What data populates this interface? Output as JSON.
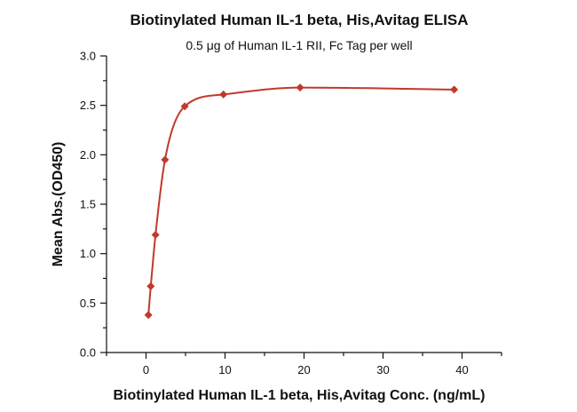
{
  "chart_data": {
    "type": "scatter",
    "title": "Biotinylated Human IL-1 beta, His,Avitag ELISA",
    "subtitle": "0.5 μg of Human IL-1 RII, Fc Tag per well",
    "xlabel": "Biotinylated Human IL-1 beta, His,Avitag Conc. (ng/mL)",
    "ylabel": "Mean Abs.(OD450)",
    "xlim": [
      -5,
      45
    ],
    "ylim": [
      0,
      3.0
    ],
    "x_ticks": [
      0,
      10,
      20,
      30,
      40
    ],
    "y_ticks": [
      0.0,
      0.5,
      1.0,
      1.5,
      2.0,
      2.5,
      3.0
    ],
    "x_tick_labels": [
      "0",
      "10",
      "20",
      "30",
      "40"
    ],
    "y_tick_labels": [
      "0.0",
      "0.5",
      "1.0",
      "1.5",
      "2.0",
      "2.5",
      "3.0"
    ],
    "grid": false,
    "color": "#c0392b",
    "series": [
      {
        "x": [
          0.3,
          0.6,
          1.2,
          2.4,
          4.9,
          9.8,
          19.5,
          39.0
        ],
        "y": [
          0.38,
          0.67,
          1.19,
          1.95,
          2.49,
          2.61,
          2.68,
          2.66
        ],
        "fit_curve": true
      }
    ]
  }
}
